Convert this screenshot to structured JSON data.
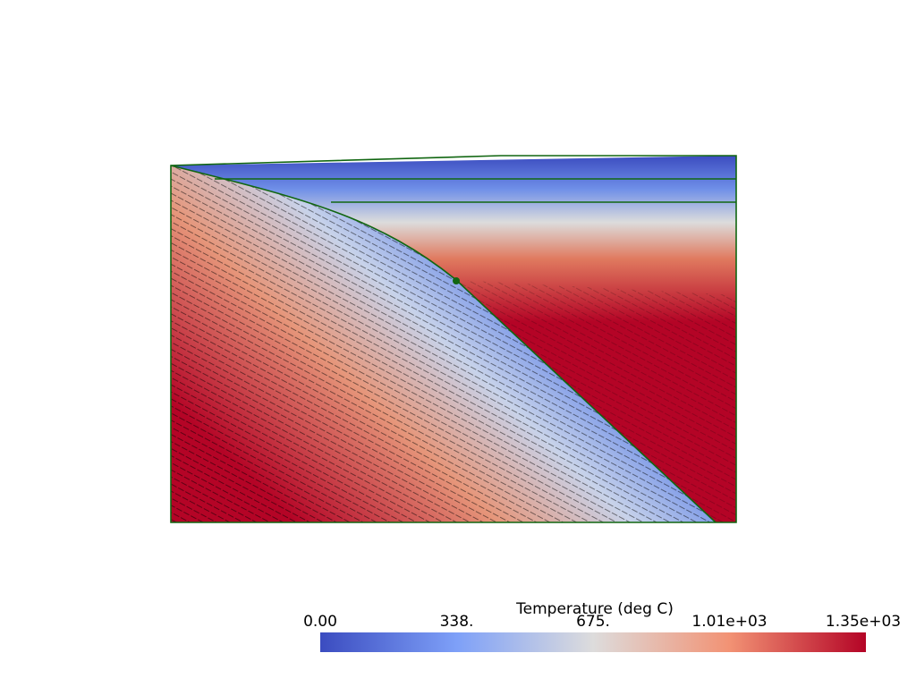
{
  "colorbar": {
    "title": "Temperature (deg C)",
    "range": [
      0,
      1350
    ],
    "ticks": [
      {
        "value": 0,
        "label": "0.00"
      },
      {
        "value": 337.5,
        "label": "338."
      },
      {
        "value": 675,
        "label": "675."
      },
      {
        "value": 1012.5,
        "label": "1.01e+03"
      },
      {
        "value": 1350,
        "label": "1.35e+03"
      }
    ]
  }
}
